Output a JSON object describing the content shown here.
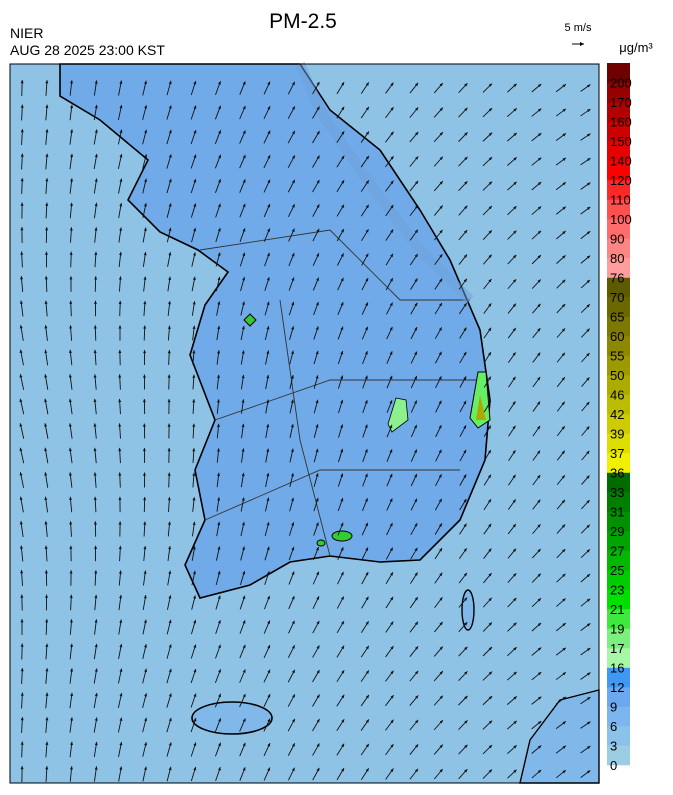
{
  "header": {
    "title": "PM-2.5",
    "source": "NIER",
    "datetime": "AUG 28 2025 23:00 KST",
    "wind_scale": "5 m/s",
    "unit": "μg/m³"
  },
  "legend": {
    "labels": [
      0,
      3,
      6,
      9,
      12,
      16,
      17,
      19,
      21,
      23,
      25,
      27,
      29,
      31,
      33,
      36,
      37,
      39,
      42,
      46,
      50,
      55,
      60,
      65,
      70,
      76,
      80,
      90,
      100,
      110,
      120,
      140,
      150,
      160,
      170,
      200
    ],
    "colors": [
      "#9ccde2",
      "#8cc1ea",
      "#7db5ee",
      "#6ca8f0",
      "#3f98f4",
      "#a6f7a6",
      "#7cf07c",
      "#3fe83f",
      "#00e000",
      "#00cc00",
      "#00b800",
      "#00a400",
      "#009000",
      "#007e00",
      "#006c00",
      "#f0f000",
      "#dede00",
      "#cccc00",
      "#bcbc00",
      "#acac00",
      "#9c9a00",
      "#8c8800",
      "#7c7800",
      "#6c6800",
      "#5e5a00",
      "#ff9c9c",
      "#ff8484",
      "#ff6c6c",
      "#ff5050",
      "#ff2828",
      "#ff0000",
      "#e60000",
      "#cc0000",
      "#b20000",
      "#960000",
      "#6e0000"
    ]
  }
}
